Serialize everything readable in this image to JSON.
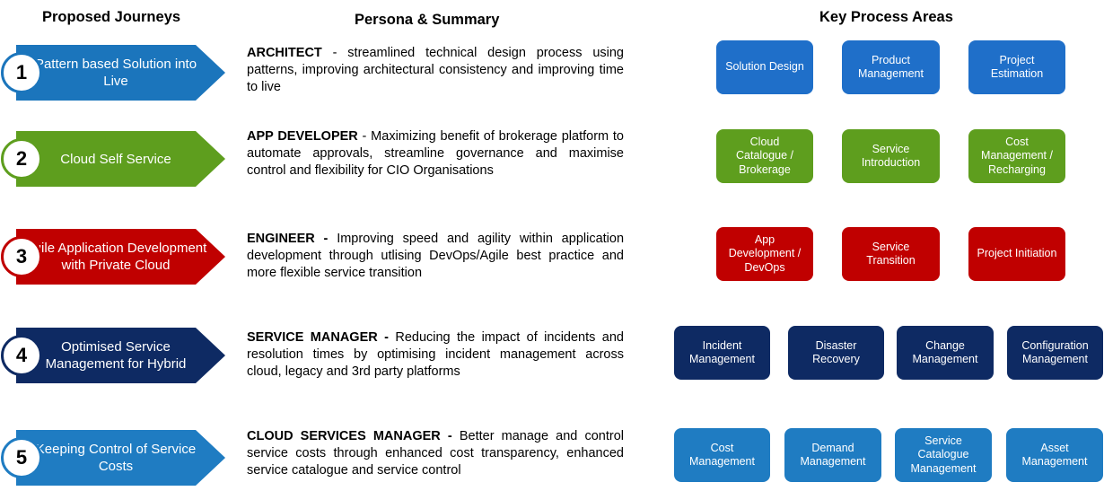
{
  "headers": {
    "journeys": "Proposed Journeys",
    "persona": "Persona & Summary",
    "process": "Key Process Areas"
  },
  "journeys": [
    {
      "number": "1",
      "label": "Pattern based Solution into Live",
      "color": "#1B75BC",
      "persona": "ARCHITECT",
      "sep": " - ",
      "summary": "streamlined technical design process using patterns, improving architectural consistency and improving time to live",
      "areas": [
        "Solution Design",
        "Product Management",
        "Project Estimation"
      ]
    },
    {
      "number": "2",
      "label": "Cloud Self Service",
      "color": "#5E9E1E",
      "persona": "APP DEVELOPER",
      "sep": " - ",
      "summary": "Maximizing benefit of brokerage platform to automate approvals, streamline governance and maximise control and flexibility for CIO Organisations",
      "areas": [
        "Cloud Catalogue / Brokerage",
        "Service Introduction",
        "Cost Management / Recharging"
      ]
    },
    {
      "number": "3",
      "label": "Agile Application Development with Private Cloud",
      "color": "#C00000",
      "persona": "ENGINEER -",
      "sep": " ",
      "summary": "Improving speed and agility within application development through utlising DevOps/Agile best practice and more flexible service transition",
      "areas": [
        "App Development / DevOps",
        "Service Transition",
        "Project Initiation"
      ]
    },
    {
      "number": "4",
      "label": "Optimised Service Management for Hybrid",
      "color": "#0E2A63",
      "persona": "SERVICE MANAGER -",
      "sep": " ",
      "summary": "Reducing the impact of incidents and resolution times by optimising incident management across cloud, legacy and 3rd party platforms",
      "areas": [
        "Incident Management",
        "Disaster Recovery",
        "Change Management",
        "Configuration Management"
      ]
    },
    {
      "number": "5",
      "label": "Keeping Control of Service Costs",
      "color": "#1F7CC2",
      "persona": "CLOUD SERVICES MANAGER -",
      "sep": " ",
      "summary": "Better manage and control service costs through enhanced cost transparency, enhanced service catalogue and service control",
      "areas": [
        "Cost Management",
        "Demand Management",
        "Service Catalogue Management",
        "Asset Management"
      ]
    }
  ]
}
